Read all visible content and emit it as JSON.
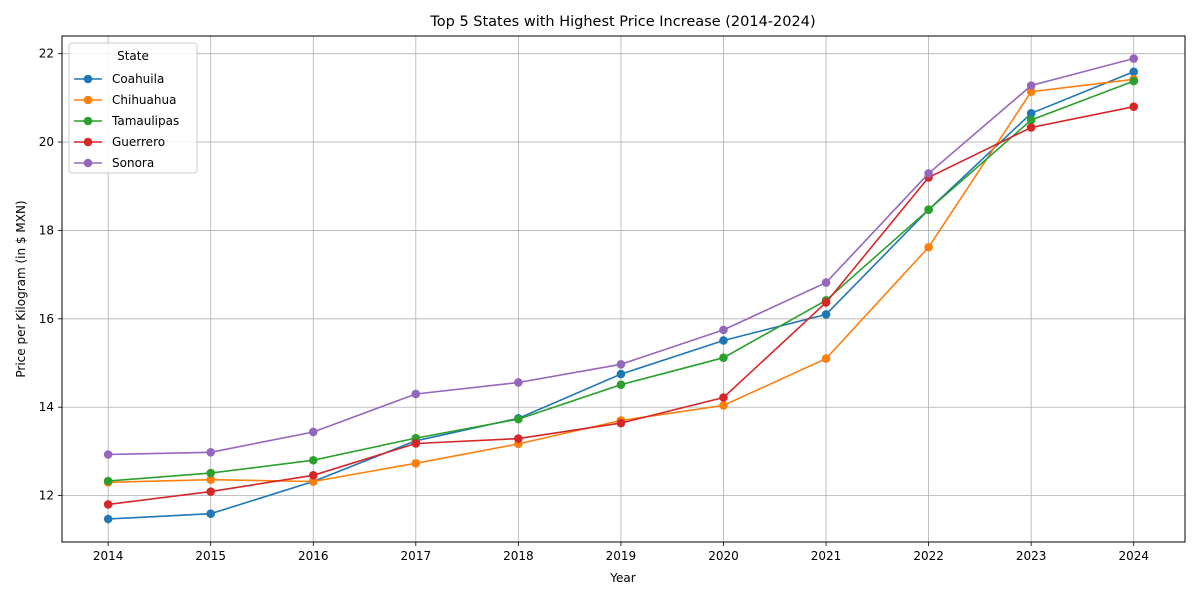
{
  "chart_data": {
    "type": "line",
    "title": "Top 5 States with Highest Price Increase (2014-2024)",
    "xlabel": "Year",
    "ylabel": "Price per Kilogram (in $ MXN)",
    "x": [
      2014,
      2015,
      2016,
      2017,
      2018,
      2019,
      2020,
      2021,
      2022,
      2023,
      2024
    ],
    "xlim": [
      2013.55,
      2024.5
    ],
    "ylim": [
      10.95,
      22.4
    ],
    "yticks": [
      12,
      14,
      16,
      18,
      20,
      22
    ],
    "grid": true,
    "legend_title": "State",
    "legend_position": "upper-left",
    "series": [
      {
        "name": "Coahuila",
        "color": "#1f77b4",
        "values": [
          11.47,
          11.59,
          12.32,
          13.24,
          13.75,
          14.75,
          15.51,
          16.1,
          18.47,
          20.65,
          21.59
        ]
      },
      {
        "name": "Chihuahua",
        "color": "#ff7f0e",
        "values": [
          12.3,
          12.36,
          12.32,
          12.73,
          13.17,
          13.7,
          14.04,
          15.1,
          17.62,
          21.14,
          21.42
        ]
      },
      {
        "name": "Tamaulipas",
        "color": "#2ca02c",
        "values": [
          12.33,
          12.51,
          12.8,
          13.3,
          13.73,
          14.51,
          15.12,
          16.42,
          18.47,
          20.5,
          21.38
        ]
      },
      {
        "name": "Guerrero",
        "color": "#d62728",
        "values": [
          11.8,
          12.09,
          12.46,
          13.18,
          13.29,
          13.64,
          14.22,
          16.37,
          19.2,
          20.33,
          20.8
        ]
      },
      {
        "name": "Sonora",
        "color": "#9467bd",
        "values": [
          12.93,
          12.98,
          13.44,
          14.3,
          14.56,
          14.97,
          15.75,
          16.82,
          19.29,
          21.28,
          21.89
        ]
      }
    ]
  }
}
